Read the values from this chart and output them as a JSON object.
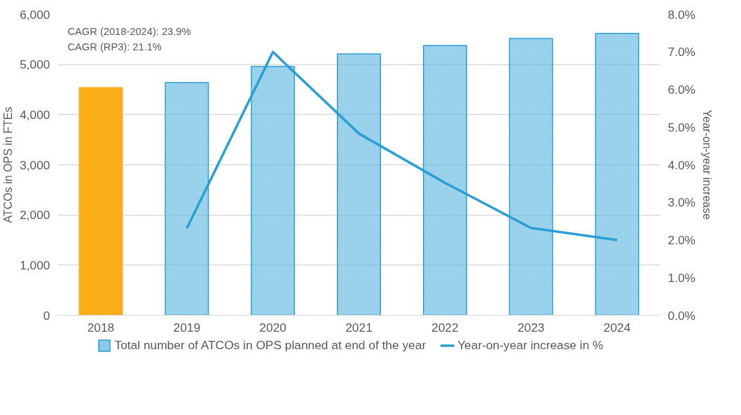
{
  "chart_data": {
    "type": "bar",
    "categories": [
      "2018",
      "2019",
      "2020",
      "2021",
      "2022",
      "2023",
      "2024"
    ],
    "series": [
      {
        "name": "Total number of ATCOs in OPS planned at end of the year",
        "color": "#2a9fd6",
        "colors": [
          "#fbae17",
          "#2a9fd6",
          "#2a9fd6",
          "#2a9fd6",
          "#2a9fd6",
          "#2a9fd6",
          "#2a9fd6"
        ],
        "values": [
          4540,
          4640,
          4960,
          5210,
          5380,
          5520,
          5620
        ]
      },
      {
        "name": "Year-on-year increase in %",
        "type": "line",
        "axis": "y2",
        "color": "#2a9fd6",
        "values": [
          null,
          2.31,
          7.0,
          4.83,
          3.52,
          2.32,
          2.0
        ]
      }
    ],
    "ylabel": "ATCOs in OPS in FTEs",
    "y2label": "Year-on-year increase",
    "ylim": [
      0,
      6000
    ],
    "yticks": [
      {
        "value": 0,
        "label": "0"
      },
      {
        "value": 1000,
        "label": "1,000"
      },
      {
        "value": 2000,
        "label": "2,000"
      },
      {
        "value": 3000,
        "label": "3,000"
      },
      {
        "value": 4000,
        "label": "4,000"
      },
      {
        "value": 5000,
        "label": "5,000"
      },
      {
        "value": 6000,
        "label": "6,000"
      }
    ],
    "y2lim": [
      0,
      8
    ],
    "y2ticks": [
      {
        "value": 0,
        "label": "0.0%"
      },
      {
        "value": 1,
        "label": "1.0%"
      },
      {
        "value": 2,
        "label": "2.0%"
      },
      {
        "value": 3,
        "label": "3.0%"
      },
      {
        "value": 4,
        "label": "4.0%"
      },
      {
        "value": 5,
        "label": "5.0%"
      },
      {
        "value": 6,
        "label": "6.0%"
      },
      {
        "value": 7,
        "label": "7.0%"
      },
      {
        "value": 8,
        "label": "8.0%"
      }
    ],
    "annotations": [
      "CAGR (2018-2024): 23.9%",
      "CAGR (RP3): 21.1%"
    ],
    "grid": "y",
    "legend": "bottom"
  }
}
